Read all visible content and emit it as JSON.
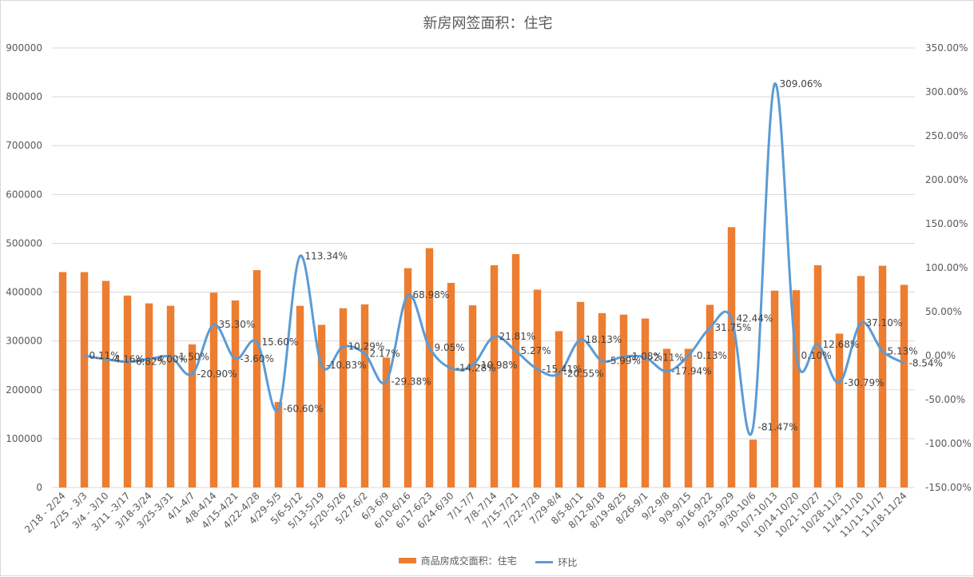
{
  "chart_data": {
    "type": "bar",
    "title": "新房网签面积：住宅",
    "categories": [
      "2/18 - 2/24",
      "2/25 - 3/3",
      "3/4 - 3/10",
      "3/11 -3/17",
      "3/18-3/24",
      "3/25-3/31",
      "4/1-4/7",
      "4/8-4/14",
      "4/15-4/21",
      "4/22-4/28",
      "4/29-5/5",
      "5/6-5/12",
      "5/13-5/19",
      "5/20-5/26",
      "5/27-6/2",
      "6/3-6/9",
      "6/10-6/16",
      "6/17-6/23",
      "6/24-6/30",
      "7/1-7/7",
      "7/8-7/14",
      "7/15-7/21",
      "7/22-7/28",
      "7/29-8/4",
      "8/5-8/11",
      "8/12-8/18",
      "8/19-8/25",
      "8/26-9/1",
      "9/2-9/8",
      "9/9-9/15",
      "9/16-9/22",
      "9/23-9/29",
      "9/30-10/6",
      "10/7-10/13",
      "10/14-10/20",
      "10/21-10/27",
      "10/28-11/3",
      "11/4-11/10",
      "11/11-11/17",
      "11/18-11/24"
    ],
    "series": [
      {
        "name": "商品房成交面积：住宅",
        "kind": "bar",
        "axis": "left",
        "color": "#ed7d31",
        "values": [
          441000,
          441000,
          423000,
          393000,
          377000,
          372000,
          293000,
          399000,
          383000,
          445000,
          175000,
          372000,
          333000,
          367000,
          375000,
          266000,
          449000,
          490000,
          419000,
          373000,
          455000,
          478000,
          405000,
          320000,
          380000,
          357000,
          354000,
          346000,
          284000,
          284000,
          374000,
          533000,
          98000,
          403000,
          404000,
          455000,
          315000,
          433000,
          454000,
          415000
        ]
      },
      {
        "name": "环比",
        "kind": "line",
        "axis": "right",
        "color": "#5b9bd5",
        "values": [
          null,
          0.11,
          -4.16,
          -6.82,
          -4.0,
          -1.5,
          -20.9,
          35.3,
          -3.6,
          15.6,
          -60.6,
          113.34,
          -10.83,
          10.29,
          2.17,
          -29.38,
          68.98,
          9.05,
          -14.28,
          -10.98,
          21.81,
          5.27,
          -15.41,
          -20.55,
          18.13,
          -5.99,
          -1.08,
          -2.11,
          -17.94,
          -0.13,
          31.75,
          42.44,
          -81.47,
          309.06,
          0.1,
          12.68,
          -30.79,
          37.1,
          5.13,
          -8.54
        ],
        "labels": [
          "",
          "0.11%",
          "-4.16%",
          "-6.82%",
          "-4.00%",
          "-1.50%",
          "-20.90%",
          "35.30%",
          "-3.60%",
          "15.60%",
          "-60.60%",
          "113.34%",
          "-10.83%",
          "10.29%",
          "2.17%",
          "-29.38%",
          "68.98%",
          "9.05%",
          "-14.28%",
          "-10.98%",
          "21.81%",
          "5.27%",
          "-15.41%",
          "-20.55%",
          "18.13%",
          "-5.99%",
          "-1.08%",
          "-2.11%",
          "-17.94%",
          "-0.13%",
          "31.75%",
          "42.44%",
          "-81.47%",
          "309.06%",
          "0.10%",
          "12.68%",
          "-30.79%",
          "37.10%",
          "5.13%",
          "-8.54%"
        ]
      }
    ],
    "y_left": {
      "min": 0,
      "max": 900000,
      "ticks": [
        "0",
        "100000",
        "200000",
        "300000",
        "400000",
        "500000",
        "600000",
        "700000",
        "800000",
        "900000"
      ]
    },
    "y_right": {
      "min": -150,
      "max": 350,
      "ticks": [
        "-150.00%",
        "-100.00%",
        "-50.00%",
        "0.00%",
        "50.00%",
        "100.00%",
        "150.00%",
        "200.00%",
        "250.00%",
        "300.00%",
        "350.00%"
      ]
    },
    "grid": true,
    "legend_position": "bottom"
  }
}
